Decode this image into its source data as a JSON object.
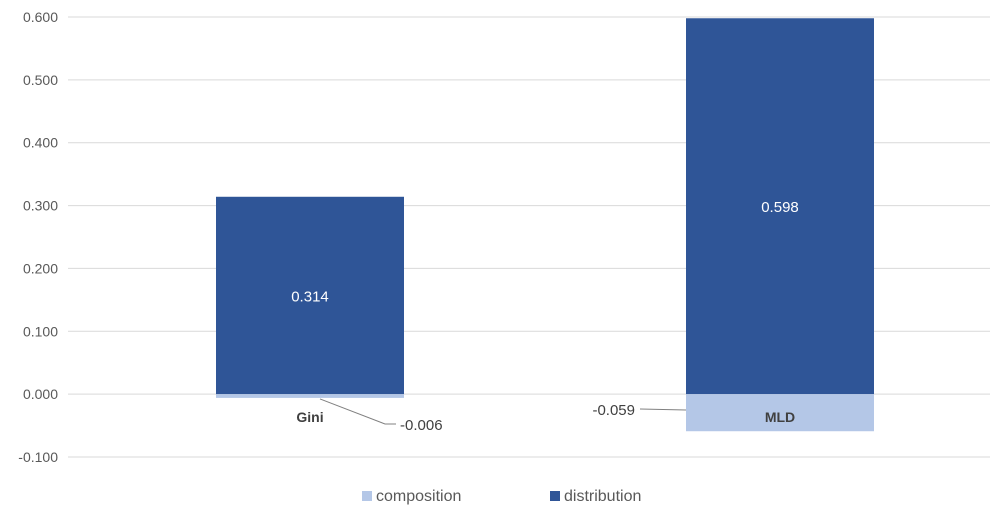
{
  "chart_data": {
    "type": "bar",
    "stacked": true,
    "categories": [
      "Gini",
      "MLD"
    ],
    "series": [
      {
        "name": "composition",
        "values": [
          -0.006,
          -0.059
        ],
        "color": "#b4c7e7"
      },
      {
        "name": "distribution",
        "values": [
          0.314,
          0.598
        ],
        "color": "#2f5597"
      }
    ],
    "data_labels": {
      "composition": [
        "-0.006",
        "-0.059"
      ],
      "distribution": [
        "0.314",
        "0.598"
      ]
    },
    "ylim": [
      -0.1,
      0.6
    ],
    "yticks": [
      -0.1,
      0.0,
      0.1,
      0.2,
      0.3,
      0.4,
      0.5,
      0.6
    ],
    "ytick_labels": [
      "-0.100",
      "0.000",
      "0.100",
      "0.200",
      "0.300",
      "0.400",
      "0.500",
      "0.600"
    ],
    "grid": true,
    "legend_position": "bottom",
    "title": "",
    "xlabel": "",
    "ylabel": ""
  }
}
